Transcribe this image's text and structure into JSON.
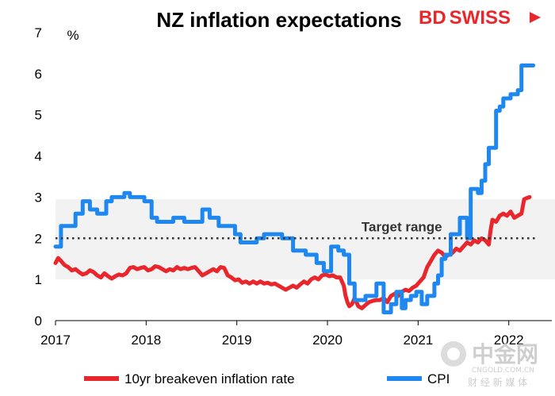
{
  "brand": {
    "part1": "BD",
    "part2": "SWISS",
    "color": "#e8262c"
  },
  "watermark": {
    "main": "中金网",
    "url": "CNGOLD.COM.CN",
    "sub": "财 经 新 媒 体"
  },
  "chart_data": {
    "type": "line",
    "title": "NZ inflation expectations",
    "unit_label": "%",
    "ylim": [
      0,
      7
    ],
    "yticks": [
      0,
      1,
      2,
      3,
      4,
      5,
      6,
      7
    ],
    "xlim": [
      2017.0,
      2022.3
    ],
    "xticks": [
      2017,
      2018,
      2019,
      2020,
      2021,
      2022
    ],
    "target_band": {
      "low": 1,
      "high": 2.95,
      "color": "#f2f2f2"
    },
    "target_midpoint": 2,
    "target_label": "Target range",
    "legend_position": "bottom",
    "series": [
      {
        "name": "10yr breakeven inflation rate",
        "color": "#e8262c",
        "step": false,
        "points": [
          [
            2017.0,
            1.4
          ],
          [
            2017.03,
            1.52
          ],
          [
            2017.06,
            1.45
          ],
          [
            2017.1,
            1.35
          ],
          [
            2017.14,
            1.3
          ],
          [
            2017.18,
            1.22
          ],
          [
            2017.22,
            1.25
          ],
          [
            2017.26,
            1.18
          ],
          [
            2017.3,
            1.12
          ],
          [
            2017.34,
            1.15
          ],
          [
            2017.38,
            1.22
          ],
          [
            2017.42,
            1.18
          ],
          [
            2017.46,
            1.1
          ],
          [
            2017.5,
            1.05
          ],
          [
            2017.54,
            1.15
          ],
          [
            2017.58,
            1.08
          ],
          [
            2017.62,
            1.02
          ],
          [
            2017.66,
            1.08
          ],
          [
            2017.7,
            1.12
          ],
          [
            2017.74,
            1.1
          ],
          [
            2017.78,
            1.15
          ],
          [
            2017.82,
            1.28
          ],
          [
            2017.86,
            1.3
          ],
          [
            2017.9,
            1.25
          ],
          [
            2017.94,
            1.28
          ],
          [
            2017.98,
            1.3
          ],
          [
            2018.02,
            1.22
          ],
          [
            2018.06,
            1.25
          ],
          [
            2018.1,
            1.32
          ],
          [
            2018.14,
            1.3
          ],
          [
            2018.18,
            1.25
          ],
          [
            2018.22,
            1.2
          ],
          [
            2018.26,
            1.25
          ],
          [
            2018.3,
            1.22
          ],
          [
            2018.34,
            1.3
          ],
          [
            2018.38,
            1.25
          ],
          [
            2018.42,
            1.28
          ],
          [
            2018.46,
            1.25
          ],
          [
            2018.5,
            1.28
          ],
          [
            2018.54,
            1.3
          ],
          [
            2018.58,
            1.2
          ],
          [
            2018.62,
            1.1
          ],
          [
            2018.66,
            1.15
          ],
          [
            2018.7,
            1.2
          ],
          [
            2018.74,
            1.25
          ],
          [
            2018.78,
            1.2
          ],
          [
            2018.82,
            1.3
          ],
          [
            2018.86,
            1.28
          ],
          [
            2018.9,
            1.1
          ],
          [
            2018.94,
            1.05
          ],
          [
            2018.98,
            0.98
          ],
          [
            2019.02,
            1.0
          ],
          [
            2019.06,
            0.92
          ],
          [
            2019.1,
            0.95
          ],
          [
            2019.14,
            0.9
          ],
          [
            2019.18,
            0.95
          ],
          [
            2019.22,
            0.9
          ],
          [
            2019.26,
            0.95
          ],
          [
            2019.3,
            0.9
          ],
          [
            2019.34,
            0.92
          ],
          [
            2019.38,
            0.88
          ],
          [
            2019.42,
            0.9
          ],
          [
            2019.46,
            0.85
          ],
          [
            2019.5,
            0.8
          ],
          [
            2019.54,
            0.75
          ],
          [
            2019.58,
            0.8
          ],
          [
            2019.62,
            0.85
          ],
          [
            2019.66,
            0.8
          ],
          [
            2019.7,
            0.88
          ],
          [
            2019.74,
            0.95
          ],
          [
            2019.78,
            0.9
          ],
          [
            2019.82,
            1.0
          ],
          [
            2019.86,
            1.05
          ],
          [
            2019.9,
            1.0
          ],
          [
            2019.94,
            1.1
          ],
          [
            2019.98,
            1.12
          ],
          [
            2020.02,
            1.08
          ],
          [
            2020.06,
            1.1
          ],
          [
            2020.1,
            1.05
          ],
          [
            2020.14,
            1.05
          ],
          [
            2020.18,
            0.85
          ],
          [
            2020.2,
            0.6
          ],
          [
            2020.22,
            0.45
          ],
          [
            2020.24,
            0.35
          ],
          [
            2020.27,
            0.4
          ],
          [
            2020.3,
            0.55
          ],
          [
            2020.34,
            0.35
          ],
          [
            2020.38,
            0.3
          ],
          [
            2020.42,
            0.38
          ],
          [
            2020.46,
            0.45
          ],
          [
            2020.5,
            0.48
          ],
          [
            2020.54,
            0.5
          ],
          [
            2020.58,
            0.5
          ],
          [
            2020.62,
            0.55
          ],
          [
            2020.66,
            0.45
          ],
          [
            2020.7,
            0.6
          ],
          [
            2020.74,
            0.65
          ],
          [
            2020.78,
            0.6
          ],
          [
            2020.82,
            0.7
          ],
          [
            2020.86,
            0.75
          ],
          [
            2020.9,
            0.72
          ],
          [
            2020.94,
            0.8
          ],
          [
            2020.98,
            0.85
          ],
          [
            2021.02,
            0.95
          ],
          [
            2021.06,
            1.05
          ],
          [
            2021.1,
            1.3
          ],
          [
            2021.14,
            1.45
          ],
          [
            2021.18,
            1.6
          ],
          [
            2021.22,
            1.7
          ],
          [
            2021.26,
            1.65
          ],
          [
            2021.3,
            1.55
          ],
          [
            2021.34,
            1.6
          ],
          [
            2021.38,
            1.65
          ],
          [
            2021.42,
            1.75
          ],
          [
            2021.46,
            1.7
          ],
          [
            2021.5,
            1.8
          ],
          [
            2021.54,
            1.9
          ],
          [
            2021.58,
            1.85
          ],
          [
            2021.62,
            1.95
          ],
          [
            2021.66,
            1.9
          ],
          [
            2021.7,
            2.0
          ],
          [
            2021.74,
            1.95
          ],
          [
            2021.78,
            1.85
          ],
          [
            2021.8,
            2.2
          ],
          [
            2021.82,
            2.45
          ],
          [
            2021.86,
            2.4
          ],
          [
            2021.9,
            2.55
          ],
          [
            2021.94,
            2.6
          ],
          [
            2021.98,
            2.55
          ],
          [
            2022.02,
            2.65
          ],
          [
            2022.06,
            2.5
          ],
          [
            2022.1,
            2.55
          ],
          [
            2022.14,
            2.6
          ],
          [
            2022.17,
            2.95
          ],
          [
            2022.2,
            2.98
          ],
          [
            2022.23,
            3.0
          ]
        ]
      },
      {
        "name": "CPI",
        "color": "#1e88f0",
        "step": true,
        "points": [
          [
            2017.0,
            1.8
          ],
          [
            2017.06,
            2.3
          ],
          [
            2017.22,
            2.6
          ],
          [
            2017.3,
            2.9
          ],
          [
            2017.38,
            2.7
          ],
          [
            2017.46,
            2.6
          ],
          [
            2017.56,
            2.9
          ],
          [
            2017.62,
            3.0
          ],
          [
            2017.76,
            3.1
          ],
          [
            2017.82,
            3.0
          ],
          [
            2017.98,
            2.9
          ],
          [
            2018.06,
            2.5
          ],
          [
            2018.12,
            2.4
          ],
          [
            2018.3,
            2.5
          ],
          [
            2018.42,
            2.4
          ],
          [
            2018.5,
            2.4
          ],
          [
            2018.62,
            2.7
          ],
          [
            2018.7,
            2.5
          ],
          [
            2018.8,
            2.3
          ],
          [
            2018.9,
            2.3
          ],
          [
            2018.98,
            2.1
          ],
          [
            2019.04,
            1.9
          ],
          [
            2019.22,
            2.0
          ],
          [
            2019.3,
            2.1
          ],
          [
            2019.5,
            2.0
          ],
          [
            2019.62,
            1.7
          ],
          [
            2019.76,
            1.6
          ],
          [
            2019.88,
            1.4
          ],
          [
            2019.96,
            1.2
          ],
          [
            2020.04,
            1.8
          ],
          [
            2020.12,
            1.7
          ],
          [
            2020.18,
            1.6
          ],
          [
            2020.24,
            0.9
          ],
          [
            2020.3,
            0.5
          ],
          [
            2020.42,
            0.6
          ],
          [
            2020.5,
            0.6
          ],
          [
            2020.54,
            0.9
          ],
          [
            2020.62,
            0.2
          ],
          [
            2020.7,
            0.4
          ],
          [
            2020.76,
            0.7
          ],
          [
            2020.82,
            0.3
          ],
          [
            2020.86,
            0.5
          ],
          [
            2020.92,
            0.6
          ],
          [
            2020.98,
            0.7
          ],
          [
            2021.04,
            0.4
          ],
          [
            2021.1,
            0.6
          ],
          [
            2021.18,
            0.9
          ],
          [
            2021.22,
            1.1
          ],
          [
            2021.26,
            1.5
          ],
          [
            2021.3,
            1.6
          ],
          [
            2021.36,
            2.1
          ],
          [
            2021.46,
            2.5
          ],
          [
            2021.54,
            2.0
          ],
          [
            2021.58,
            3.2
          ],
          [
            2021.66,
            3.1
          ],
          [
            2021.7,
            3.4
          ],
          [
            2021.74,
            3.8
          ],
          [
            2021.78,
            4.2
          ],
          [
            2021.86,
            5.1
          ],
          [
            2021.9,
            5.2
          ],
          [
            2021.94,
            5.4
          ],
          [
            2022.02,
            5.5
          ],
          [
            2022.1,
            5.6
          ],
          [
            2022.14,
            6.2
          ],
          [
            2022.27,
            6.2
          ]
        ]
      }
    ]
  }
}
